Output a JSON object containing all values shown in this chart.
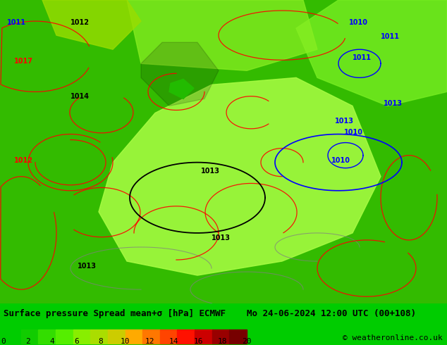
{
  "title": "Surface pressure Spread mean+σ [hPa] ECMWF    Mo 24-06-2024 12:00 UTC (00+108)",
  "copyright": "© weatheronline.co.uk",
  "colorbar_label": "Surface pressure Spread mean+σ [hPa] ECMWF    Mo 24-06-2024 12:00 UTC (00+108)",
  "colorbar_ticks": [
    0,
    2,
    4,
    6,
    8,
    10,
    12,
    14,
    16,
    18,
    20
  ],
  "colorbar_colors": [
    "#00CC00",
    "#00DD00",
    "#33EE00",
    "#77EE00",
    "#AAEE00",
    "#CCDD00",
    "#FFCC00",
    "#FFAA00",
    "#FF7700",
    "#FF4400",
    "#EE1100",
    "#CC0000",
    "#990000",
    "#660000"
  ],
  "bg_color": "#00CC00",
  "map_bg": "#33CC00",
  "fig_width": 6.34,
  "fig_height": 4.9,
  "dpi": 100,
  "bottom_bar_height": 0.09,
  "title_fontsize": 9,
  "copyright_fontsize": 8,
  "tick_fontsize": 8,
  "contour_label_fontsize": 7,
  "map_green_light": "#55EE00",
  "map_green_dark": "#00AA00",
  "spread_colors": {
    "0_2": "#00CC00",
    "2_4": "#22DD00",
    "4_6": "#66EE00",
    "6_8": "#AAEE00",
    "8_10": "#DDDD00",
    "10_12": "#FFCC00",
    "12_14": "#FF9900",
    "14_16": "#FF6600",
    "16_18": "#FF2200",
    "18_20": "#CC0000",
    "20+": "#880000"
  }
}
